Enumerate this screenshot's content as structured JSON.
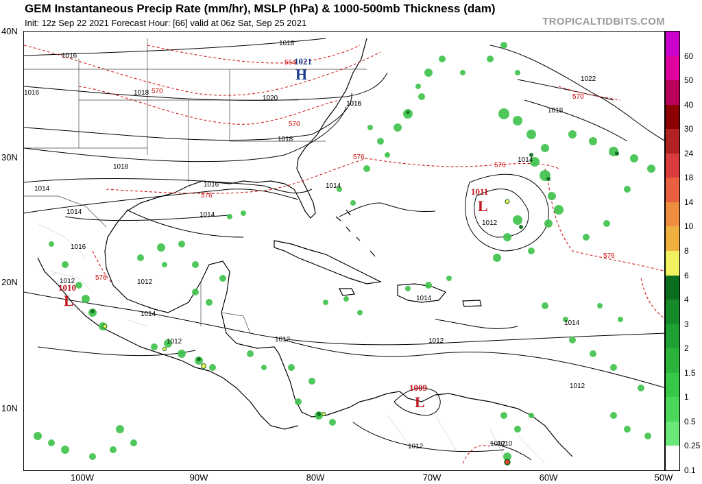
{
  "header": {
    "title": "GEM Instantaneous Precip Rate (mm/hr), MSLP (hPa) & 1000-500mb Thickness (dam)",
    "subtitle": "Init: 12z Sep 22 2021    Forecast Hour: [66]    valid at 06z Sat, Sep 25 2021",
    "brand": "TROPICALTIDBITS.COM"
  },
  "axes": {
    "lat_labels": [
      "40N",
      "30N",
      "20N",
      "10N"
    ],
    "lon_labels": [
      "100W",
      "90W",
      "80W",
      "70W",
      "60W",
      "50W"
    ]
  },
  "colorbar": {
    "labels": [
      "60",
      "50",
      "40",
      "30",
      "24",
      "18",
      "14",
      "10",
      "8",
      "6",
      "4",
      "3",
      "2",
      "1.5",
      "1",
      "0.5",
      "0.25",
      "0.1"
    ],
    "colors": [
      "#cc00cc",
      "#e000a0",
      "#b8005a",
      "#8b0000",
      "#b22222",
      "#d83c3c",
      "#e86040",
      "#ee8c40",
      "#f0b040",
      "#f0f060",
      "#0a6e1e",
      "#148a28",
      "#1ea032",
      "#2ab43c",
      "#38c848",
      "#4ad85a",
      "#6ce87a",
      "#ffffff"
    ]
  },
  "pressure_centers": [
    {
      "letter": "H",
      "value": "1021",
      "color": "#1a3c8c"
    },
    {
      "letter": "L",
      "value": "1011",
      "color": "#c0141e"
    },
    {
      "letter": "L",
      "value": "1009",
      "color": "#c0141e"
    },
    {
      "letter": "L",
      "value": "1010",
      "color": "#c0141e"
    }
  ],
  "isobar_labels": [
    "1018",
    "1016",
    "1016",
    "1018",
    "1020",
    "1018",
    "1016",
    "1018",
    "1014",
    "1016",
    "1014",
    "1016",
    "1014",
    "1014",
    "1012",
    "1014",
    "1012",
    "1012",
    "1012",
    "1012",
    "1014",
    "1022",
    "1016",
    "1018",
    "1014",
    "1012",
    "1014",
    "1012",
    "1012",
    "1012",
    "1010"
  ],
  "thickness_labels": [
    "564",
    "570",
    "570",
    "576",
    "576",
    "576",
    "576",
    "570",
    "576"
  ]
}
